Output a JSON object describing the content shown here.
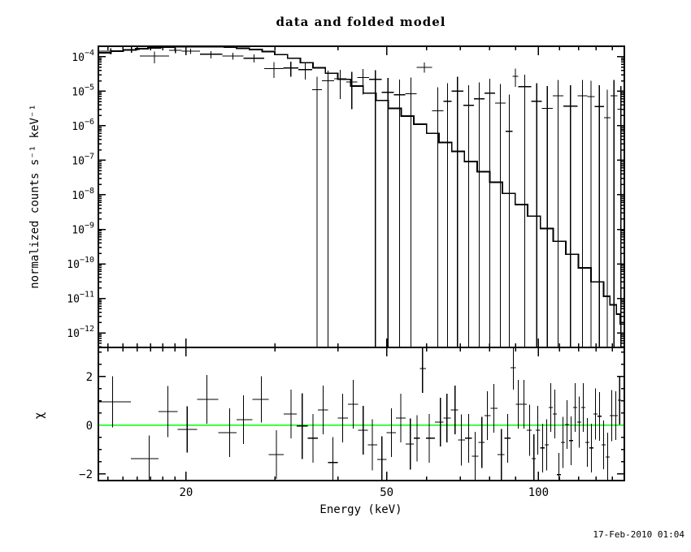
{
  "title": "data and folded model",
  "timestamp": "17-Feb-2010 01:04",
  "colors": {
    "foreground": "#000000",
    "model": "#000000",
    "data": "#000000",
    "zero_line": "#00ff00",
    "background": "#ffffff"
  },
  "chart_data": [
    {
      "type": "scatter",
      "title": "data and folded model",
      "ylabel": "normalized counts s⁻¹ keV⁻¹",
      "xscale": "log",
      "yscale": "log",
      "xlim": [
        13.4,
        148
      ],
      "ylim": [
        3.8e-13,
        0.0002
      ],
      "grid": false,
      "legend": "none",
      "x_ticks_major": [
        20,
        50,
        100
      ],
      "x_ticks_minor": [
        14,
        15,
        16,
        17,
        18,
        19,
        30,
        40,
        60,
        70,
        80,
        90,
        110,
        120,
        130,
        140
      ],
      "y_tick_exponents": [
        -4,
        -5,
        -6,
        -7,
        -8,
        -9,
        -10,
        -11,
        -12
      ],
      "model_steps": [
        [
          13.4,
          0.00013
        ],
        [
          14.2,
          0.000145
        ],
        [
          15.0,
          0.000158
        ],
        [
          15.9,
          0.00017
        ],
        [
          16.8,
          0.00018
        ],
        [
          17.8,
          0.000188
        ],
        [
          18.9,
          0.000193
        ],
        [
          20.0,
          0.000196
        ],
        [
          21.2,
          0.000196
        ],
        [
          22.5,
          0.000193
        ],
        [
          23.8,
          0.000186
        ],
        [
          25.2,
          0.000175
        ],
        [
          26.7,
          0.00016
        ],
        [
          28.3,
          0.00014
        ],
        [
          30.0,
          0.000115
        ],
        [
          31.8,
          9e-05
        ],
        [
          33.7,
          6.7e-05
        ],
        [
          35.7,
          4.8e-05
        ],
        [
          37.8,
          3.3e-05
        ],
        [
          40.0,
          2.2e-05
        ],
        [
          42.4,
          1.4e-05
        ],
        [
          44.9,
          8.8e-06
        ],
        [
          47.6,
          5.4e-06
        ],
        [
          50.4,
          3.2e-06
        ],
        [
          53.4,
          1.9e-06
        ],
        [
          56.6,
          1.1e-06
        ],
        [
          60.0,
          6e-07
        ],
        [
          63.5,
          3.3e-07
        ],
        [
          67.3,
          1.8e-07
        ],
        [
          71.3,
          9.2e-08
        ],
        [
          75.6,
          4.7e-08
        ],
        [
          80.1,
          2.3e-08
        ],
        [
          84.8,
          1.1e-08
        ],
        [
          89.9,
          5.2e-09
        ],
        [
          95.2,
          2.4e-09
        ],
        [
          100.9,
          1.05e-09
        ],
        [
          106.9,
          4.5e-10
        ],
        [
          113.3,
          1.9e-10
        ],
        [
          120.0,
          7.6e-11
        ],
        [
          127.1,
          3e-11
        ],
        [
          134.7,
          1.15e-11
        ],
        [
          138.6,
          6.5e-12
        ],
        [
          142.7,
          3.5e-12
        ],
        [
          145.3,
          1.8e-12
        ],
        [
          148.0,
          9e-13
        ]
      ],
      "data_points": [
        [
          13.4,
          15.0,
          0.000145,
          0.000115,
          0.000175
        ],
        [
          15.0,
          16.2,
          0.00016,
          0.00013,
          0.000192
        ],
        [
          16.2,
          18.5,
          0.000105,
          6.5e-05,
          0.00014
        ],
        [
          18.5,
          19.6,
          0.000152,
          0.000125,
          0.00018
        ],
        [
          19.6,
          21.3,
          0.000145,
          0.000118,
          0.000172
        ],
        [
          21.3,
          23.6,
          0.000118,
          9e-05,
          0.000145
        ],
        [
          23.6,
          26.0,
          0.000105,
          8.2e-05,
          0.00013
        ],
        [
          26.0,
          28.6,
          9e-05,
          6.8e-05,
          0.000115
        ],
        [
          28.6,
          31.2,
          4.5e-05,
          2.4e-05,
          7e-05
        ],
        [
          31.2,
          33.4,
          4.7e-05,
          2.6e-05,
          7.2e-05
        ],
        [
          33.4,
          35.6,
          4.2e-05,
          2.2e-05,
          6.6e-05
        ],
        [
          35.6,
          37.2,
          1.1e-05,
          4e-13,
          2.6e-05
        ],
        [
          37.2,
          39.3,
          2e-05,
          4e-13,
          3.9e-05
        ],
        [
          39.3,
          41.6,
          2.3e-05,
          6e-06,
          4.2e-05
        ],
        [
          41.6,
          43.7,
          1.85e-05,
          3e-06,
          3.6e-05
        ],
        [
          43.7,
          46.1,
          2.5e-05,
          8e-06,
          4.4e-05
        ],
        [
          46.1,
          48.9,
          2.2e-05,
          4e-13,
          4e-05
        ],
        [
          48.9,
          51.7,
          9.3e-06,
          4e-13,
          2.4e-05
        ],
        [
          51.7,
          54.4,
          7.9e-06,
          4e-13,
          2.2e-05
        ],
        [
          54.4,
          57.3,
          8.4e-06,
          4e-13,
          2.5e-05
        ],
        [
          57.3,
          61.5,
          4.9e-05,
          3.4e-05,
          6.8e-05
        ],
        [
          61.5,
          64.8,
          2.7e-06,
          4e-13,
          1.3e-05
        ],
        [
          64.8,
          67.3,
          5.1e-06,
          4e-13,
          1.7e-05
        ],
        [
          67.3,
          70.9,
          1e-05,
          4e-13,
          2.6e-05
        ],
        [
          70.9,
          74.5,
          3.9e-06,
          4e-13,
          1.5e-05
        ],
        [
          74.5,
          78.2,
          6e-06,
          4e-13,
          1.8e-05
        ],
        [
          78.2,
          82.0,
          8.8e-06,
          4e-13,
          2.3e-05
        ],
        [
          82.0,
          86.1,
          4.5e-06,
          4e-13,
          1.6e-05
        ],
        [
          86.1,
          88.9,
          6.9e-07,
          4e-13,
          8e-06
        ],
        [
          88.9,
          91.2,
          2.7e-05,
          1.35e-05,
          4.5e-05
        ],
        [
          91.2,
          96.8,
          1.35e-05,
          4e-13,
          3e-05
        ],
        [
          96.8,
          101.6,
          5.1e-06,
          4e-13,
          1.7e-05
        ],
        [
          101.6,
          106.7,
          3.2e-06,
          4e-13,
          1.4e-05
        ],
        [
          106.7,
          112.0,
          7.4e-06,
          4e-13,
          2.1e-05
        ],
        [
          112.0,
          119.6,
          3.7e-06,
          4e-13,
          1.5e-05
        ],
        [
          119.6,
          124.9,
          7.4e-06,
          4e-13,
          2.1e-05
        ],
        [
          124.9,
          129.3,
          7e-06,
          4e-13,
          2e-05
        ],
        [
          129.3,
          134.9,
          3.6e-06,
          4e-13,
          1.5e-05
        ],
        [
          134.9,
          138.9,
          1.7e-06,
          4e-13,
          1.1e-05
        ],
        [
          138.9,
          143.5,
          7.4e-06,
          4e-13,
          2.1e-05
        ],
        [
          143.5,
          148.0,
          3e-06,
          4e-13,
          1.4e-05
        ]
      ]
    },
    {
      "type": "scatter",
      "ylabel": "χ",
      "xlabel": "Energy (keV)",
      "xscale": "log",
      "yscale": "linear",
      "xlim": [
        13.4,
        148
      ],
      "ylim": [
        -2.27,
        3.2
      ],
      "grid": false,
      "legend": "none",
      "x_ticks_major": [
        20,
        50,
        100
      ],
      "x_ticks_minor": [
        14,
        15,
        16,
        17,
        18,
        19,
        30,
        40,
        60,
        70,
        80,
        90,
        110,
        120,
        130,
        140
      ],
      "y_ticks_major": [
        -2,
        0,
        2
      ],
      "y_tick_minor_step": 0.5,
      "zero_line": 0,
      "points": [
        [
          14.3,
          0.97,
          1.05
        ],
        [
          16.9,
          -1.37,
          0.95
        ],
        [
          18.4,
          0.57,
          1.05
        ],
        [
          20.1,
          -0.17,
          0.95
        ],
        [
          22.0,
          1.07,
          1.0
        ],
        [
          24.4,
          -0.3,
          1.0
        ],
        [
          26.0,
          0.23,
          1.0
        ],
        [
          28.2,
          1.07,
          0.95
        ],
        [
          30.2,
          -1.2,
          1.0
        ],
        [
          32.3,
          0.47,
          1.0
        ],
        [
          34.0,
          -0.03,
          1.35
        ],
        [
          35.7,
          -0.53,
          1.0
        ],
        [
          37.4,
          0.63,
          1.0
        ],
        [
          39.1,
          -1.53,
          1.05
        ],
        [
          40.9,
          0.3,
          1.0
        ],
        [
          42.9,
          0.87,
          1.0
        ],
        [
          44.9,
          -0.2,
          1.0
        ],
        [
          46.8,
          -0.8,
          1.05
        ],
        [
          48.9,
          -1.4,
          0.95
        ],
        [
          51.1,
          -0.3,
          1.0
        ],
        [
          53.3,
          0.3,
          1.0
        ],
        [
          55.7,
          -0.77,
          1.05
        ],
        [
          57.4,
          -0.53,
          0.95
        ],
        [
          58.9,
          2.33,
          1.0
        ],
        [
          60.7,
          -0.53,
          1.0
        ],
        [
          63.9,
          0.13,
          1.0
        ],
        [
          65.8,
          0.3,
          1.0
        ],
        [
          68.3,
          0.63,
          1.0
        ],
        [
          70.3,
          -0.6,
          1.05
        ],
        [
          72.7,
          -0.53,
          1.0
        ],
        [
          74.9,
          -1.27,
          1.0
        ],
        [
          77.2,
          -0.7,
          1.05
        ],
        [
          79.2,
          0.4,
          1.0
        ],
        [
          81.6,
          0.7,
          1.0
        ],
        [
          84.4,
          -1.2,
          1.05
        ],
        [
          86.9,
          -0.53,
          1.0
        ],
        [
          89.2,
          2.37,
          0.9
        ],
        [
          91.2,
          0.87,
          1.0
        ],
        [
          93.6,
          0.87,
          1.0
        ],
        [
          96.0,
          -0.2,
          1.05
        ],
        [
          97.9,
          -1.37,
          1.0
        ],
        [
          99.7,
          -0.2,
          1.0
        ],
        [
          101.9,
          -0.93,
          1.0
        ],
        [
          103.8,
          -0.8,
          1.05
        ],
        [
          105.8,
          0.73,
          1.0
        ],
        [
          107.7,
          0.47,
          1.0
        ],
        [
          109.8,
          -2.03,
          0.9
        ],
        [
          111.8,
          -0.7,
          1.05
        ],
        [
          113.9,
          0.03,
          1.0
        ],
        [
          116.0,
          -0.63,
          1.0
        ],
        [
          118.2,
          0.73,
          1.0
        ],
        [
          120.4,
          0.13,
          1.05
        ],
        [
          122.7,
          0.73,
          1.0
        ],
        [
          125.0,
          -0.7,
          1.0
        ],
        [
          127.3,
          -0.93,
          1.0
        ],
        [
          129.7,
          0.47,
          1.05
        ],
        [
          132.1,
          0.37,
          1.0
        ],
        [
          134.6,
          -0.8,
          1.0
        ],
        [
          137.1,
          -1.3,
          1.0
        ],
        [
          139.7,
          0.4,
          1.05
        ],
        [
          142.3,
          0.4,
          1.0
        ],
        [
          144.9,
          1.03,
          1.0
        ]
      ]
    }
  ]
}
